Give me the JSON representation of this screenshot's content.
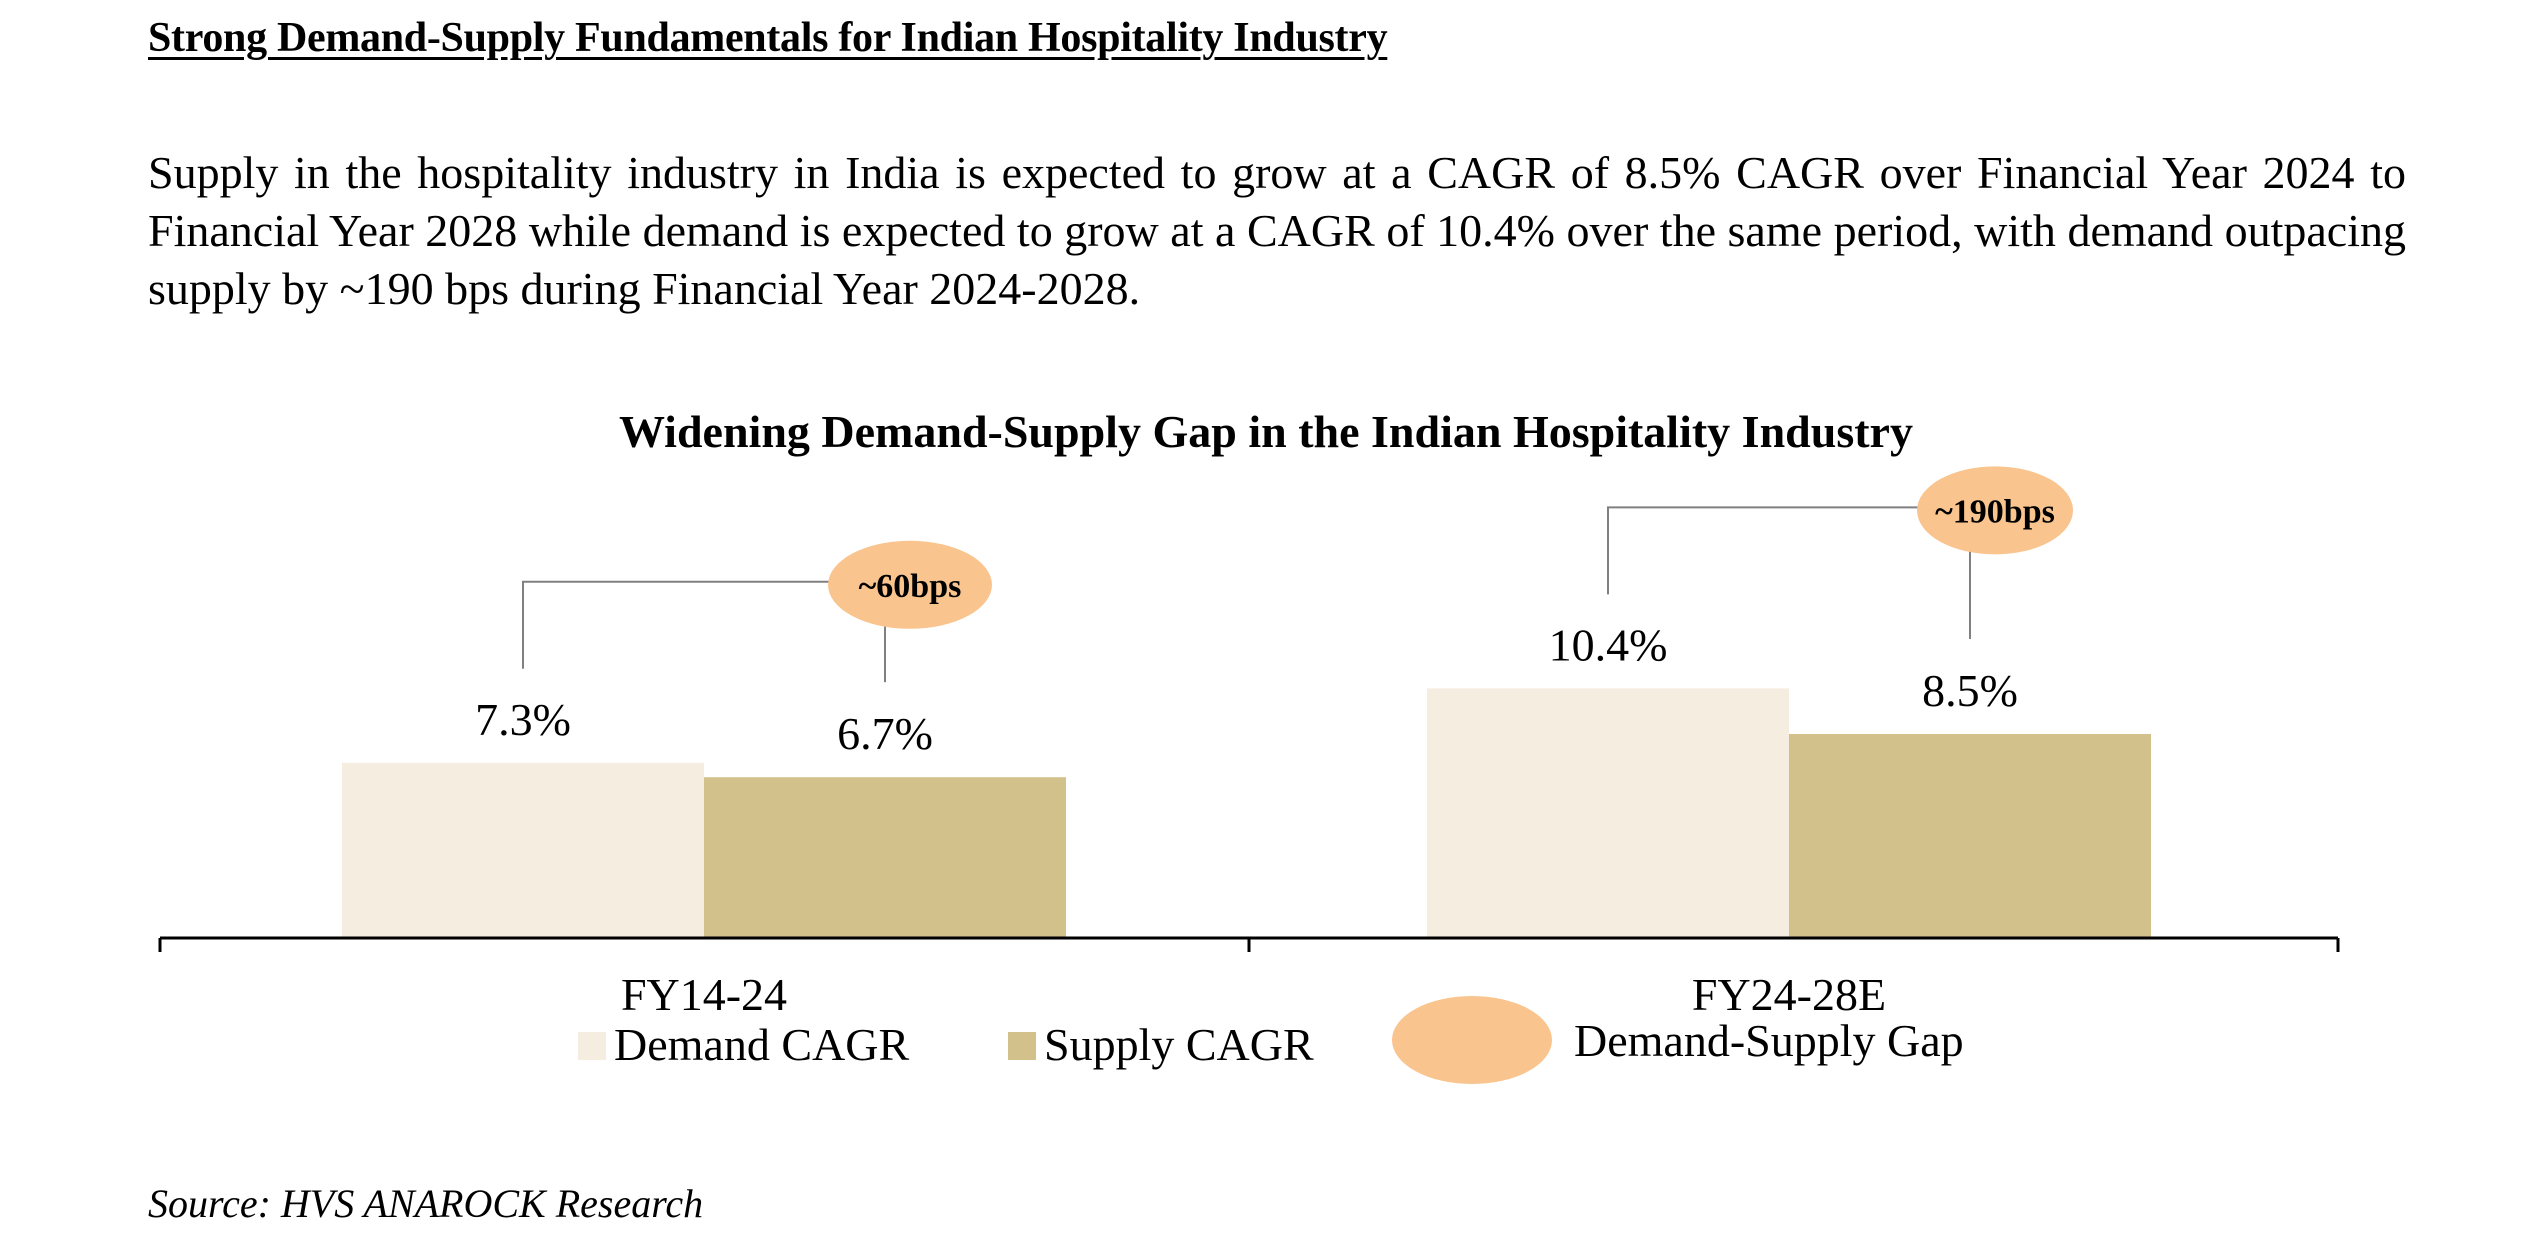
{
  "heading": "Strong Demand-Supply Fundamentals for Indian Hospitality Industry",
  "paragraph": "Supply in the hospitality industry in India is expected to grow at a CAGR of 8.5% CAGR over Financial Year 2024 to Financial Year 2028 while demand is expected to grow at a CAGR of 10.4% over the same period, with demand outpacing supply by ~190 bps during Financial Year 2024-2028.",
  "source": "Source: HVS ANAROCK Research",
  "colors": {
    "demand": "#F6EDE1",
    "supply": "#D3C18C",
    "gap": "#F9C48E",
    "axis": "#000000",
    "connector": "#808080"
  },
  "chart_data": {
    "type": "bar",
    "title": "Widening Demand-Supply Gap in the Indian Hospitality Industry",
    "categories": [
      "FY14-24",
      "FY24-28E"
    ],
    "series": [
      {
        "name": "Demand CAGR",
        "values": [
          7.3,
          10.4
        ],
        "labels": [
          "7.3%",
          "10.4%"
        ]
      },
      {
        "name": "Supply CAGR",
        "values": [
          6.7,
          8.5
        ],
        "labels": [
          "6.7%",
          "8.5%"
        ]
      }
    ],
    "gap_annotations": [
      "~60bps",
      "~190bps"
    ],
    "legend": [
      "Demand CAGR",
      "Supply CAGR",
      "Demand-Supply Gap"
    ],
    "legend_position": "bottom",
    "ylim": [
      0,
      12
    ],
    "grid": false
  }
}
